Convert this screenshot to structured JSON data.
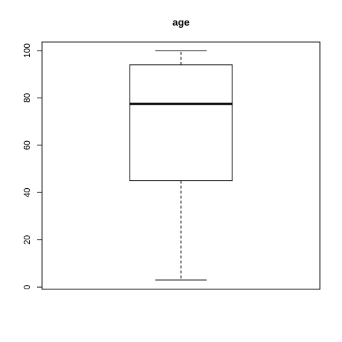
{
  "chart_data": {
    "type": "boxplot",
    "title": "age",
    "xlabel": "",
    "ylabel": "",
    "ylim": [
      -1,
      104
    ],
    "yticks": [
      0,
      20,
      40,
      60,
      80,
      100
    ],
    "box": {
      "min": 3,
      "q1": 45,
      "median": 77.5,
      "q3": 94,
      "max": 100
    },
    "colors": {
      "stroke": "#000000",
      "background": "#ffffff"
    }
  }
}
